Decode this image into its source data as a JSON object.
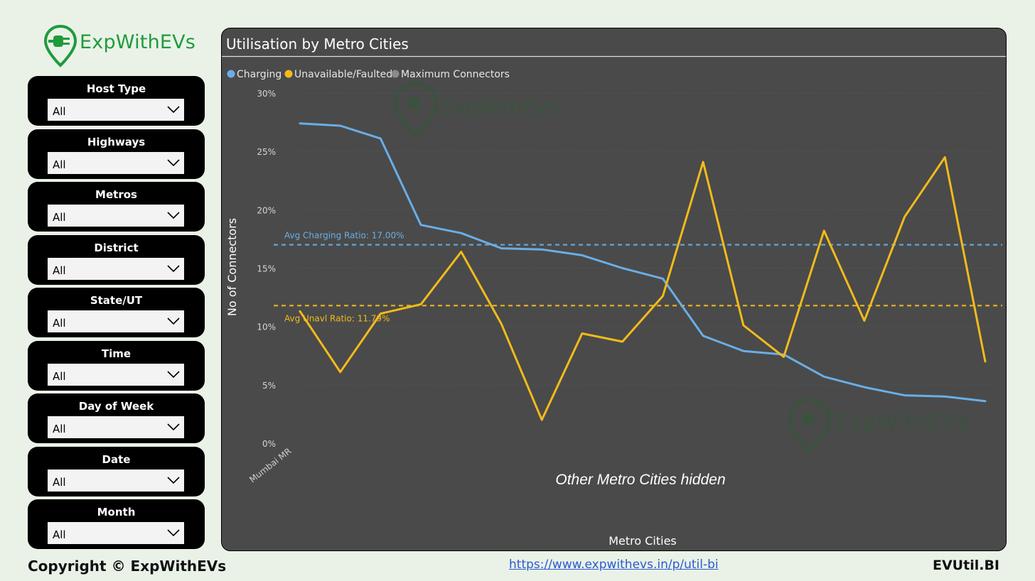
{
  "logo": {
    "text": "ExpWithEVs",
    "color": "#1f9b3c"
  },
  "filters": [
    {
      "label": "Host Type",
      "value": "All"
    },
    {
      "label": "Highways",
      "value": "All"
    },
    {
      "label": "Metros",
      "value": "All"
    },
    {
      "label": "District",
      "value": "All"
    },
    {
      "label": "State/UT",
      "value": "All"
    },
    {
      "label": "Time",
      "value": "All"
    },
    {
      "label": "Day of Week",
      "value": "All"
    },
    {
      "label": "Date",
      "value": "All"
    },
    {
      "label": "Month",
      "value": "All"
    }
  ],
  "footer": {
    "copyright": "Copyright © ExpWithEVs",
    "link": "https://www.expwithevs.in/p/util-bi",
    "brand": "EVUtil.BI"
  },
  "chart_data": {
    "type": "line",
    "title": "Utilisation by Metro Cities",
    "xlabel": "Metro Cities",
    "ylabel": "No of Connectors",
    "x_tick_label": "Mumbai MR",
    "note": "Other Metro Cities hidden",
    "watermark": "ExpWithEVs",
    "ylim": [
      0,
      30
    ],
    "y_ticks": [
      "0%",
      "5%",
      "10%",
      "15%",
      "20%",
      "25%",
      "30%"
    ],
    "grid": true,
    "legend_position": "top-left",
    "legend": [
      "Charging",
      "Unavailable/Faulted",
      "Maximum Connectors"
    ],
    "series": [
      {
        "name": "Charging",
        "color": "#6aaee6",
        "values": [
          27.4,
          27.2,
          26.1,
          18.7,
          18.0,
          16.7,
          16.6,
          16.1,
          15.0,
          14.1,
          9.2,
          7.9,
          7.6,
          5.7,
          4.8,
          4.1,
          4.0,
          3.6
        ]
      },
      {
        "name": "Unavailable/Faulted",
        "color": "#f2bb1a",
        "values": [
          11.3,
          6.1,
          11.1,
          11.9,
          16.4,
          10.2,
          2.0,
          9.4,
          8.7,
          12.6,
          24.1,
          10.1,
          7.4,
          18.2,
          10.5,
          19.4,
          24.5,
          7.0
        ]
      }
    ],
    "legend_colors": [
      "#6aaee6",
      "#f2bb1a",
      "#8a8a8a"
    ],
    "reference_lines": [
      {
        "label": "Avg Charging Ratio: 17.00%",
        "value": 17.0,
        "color": "#6aaee6"
      },
      {
        "label": "Avg Unavl Ratio: 11.79%",
        "value": 11.79,
        "color": "#f2bb1a"
      }
    ]
  }
}
